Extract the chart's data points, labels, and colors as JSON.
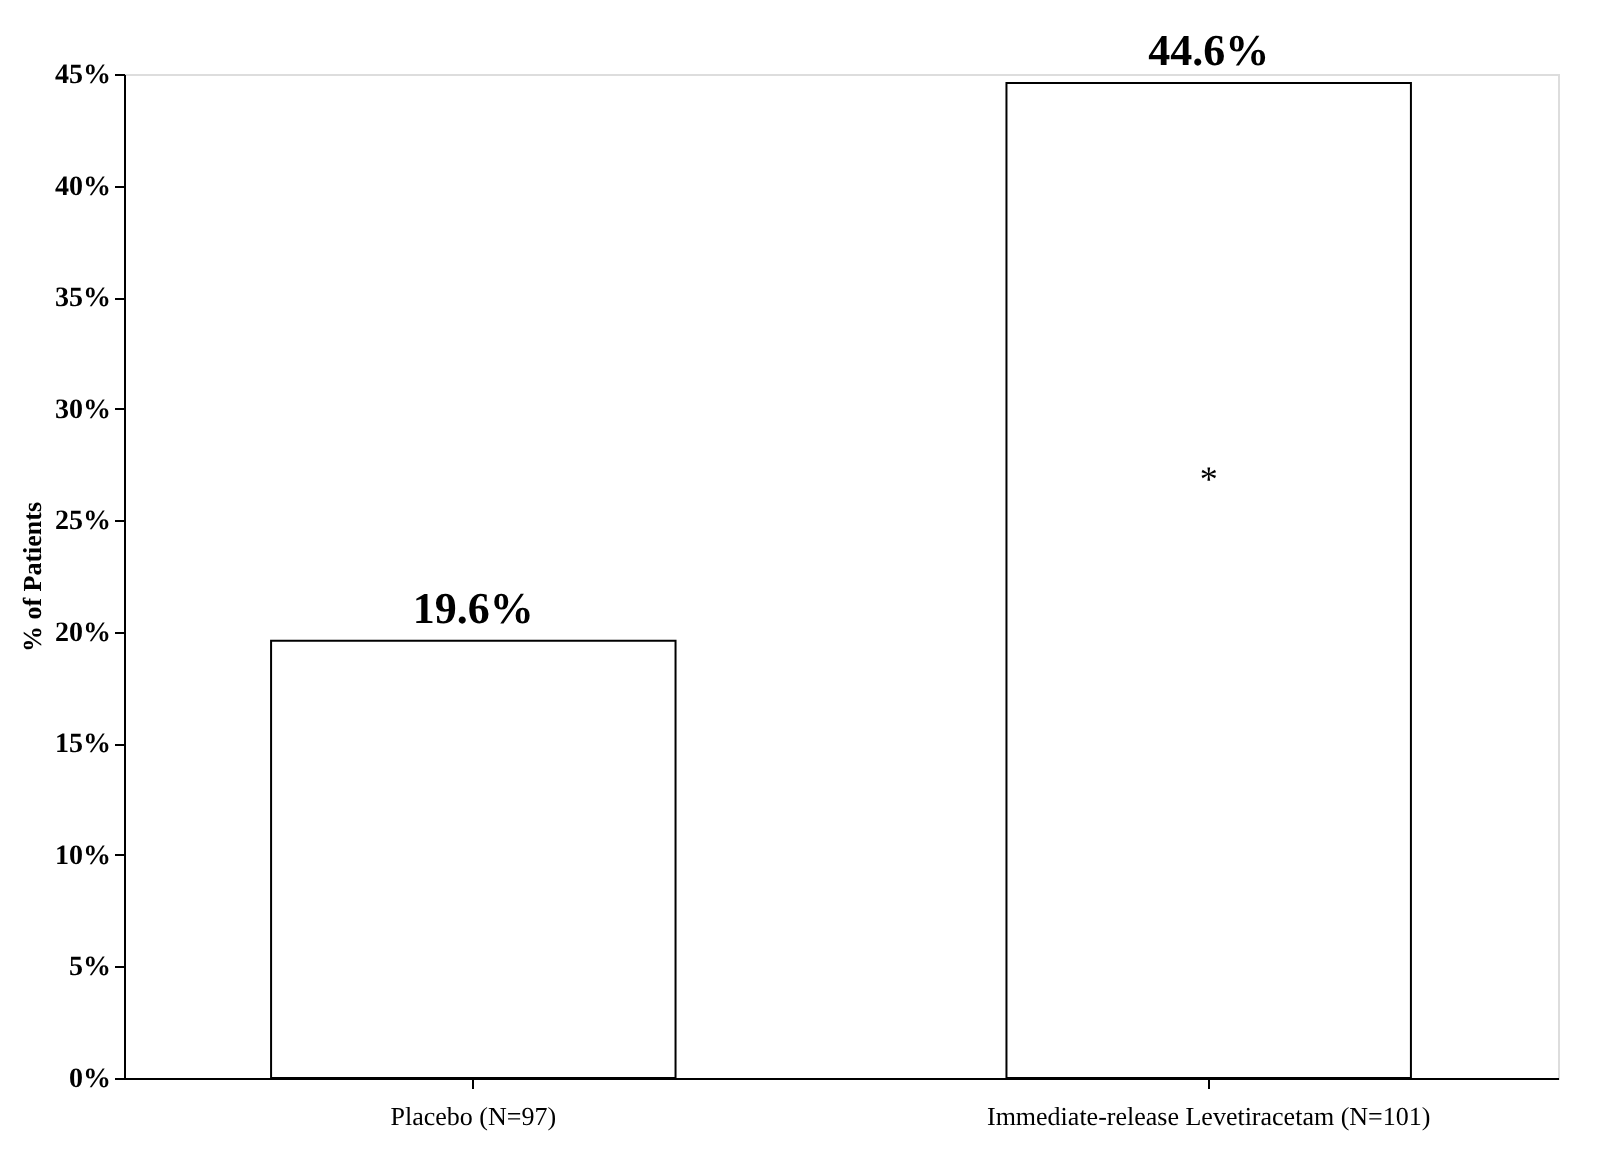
{
  "chart_data": {
    "type": "bar",
    "ylabel": "% of Patients",
    "categories": [
      "Placebo (N=97)",
      "Immediate-release Levetiracetam (N=101)"
    ],
    "values": [
      19.6,
      44.6
    ],
    "color": "#ffffff",
    "value_labels": [
      "19.6%",
      "44.6%"
    ],
    "ylim": [
      0,
      45
    ],
    "yticks": [
      {
        "value": 0,
        "label": "0%"
      },
      {
        "value": 5,
        "label": "5%"
      },
      {
        "value": 10,
        "label": "10%"
      },
      {
        "value": 15,
        "label": "15%"
      },
      {
        "value": 20,
        "label": "20%"
      },
      {
        "value": 25,
        "label": "25%"
      },
      {
        "value": 30,
        "label": "30%"
      },
      {
        "value": 35,
        "label": "35%"
      },
      {
        "value": 40,
        "label": "40%"
      },
      {
        "value": 45,
        "label": "45%"
      }
    ],
    "annotations": [
      "*"
    ],
    "grid": false
  }
}
